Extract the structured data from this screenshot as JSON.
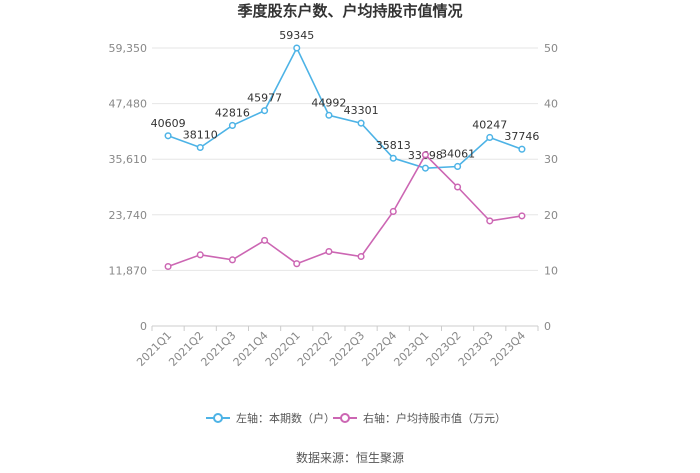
{
  "chart_data": {
    "type": "line",
    "title": "季度股东户数、户均持股市值情况",
    "categories": [
      "2021Q1",
      "2021Q2",
      "2021Q3",
      "2021Q4",
      "2022Q1",
      "2022Q2",
      "2022Q3",
      "2022Q4",
      "2023Q1",
      "2023Q2",
      "2023Q3",
      "2023Q4"
    ],
    "left_axis": {
      "ticks": [
        "0",
        "11,870",
        "23,740",
        "35,610",
        "47,480",
        "59,350"
      ],
      "ylim": [
        0,
        59350
      ]
    },
    "right_axis": {
      "ticks": [
        "0",
        "10",
        "20",
        "30",
        "40",
        "50"
      ],
      "ylim": [
        0,
        50
      ]
    },
    "series": [
      {
        "name": "左轴：本期数（户）",
        "axis": "left",
        "color": "#4db3e6",
        "values": [
          40609,
          38110,
          42816,
          45977,
          59345,
          44992,
          43301,
          35813,
          33698,
          34061,
          40247,
          37746
        ],
        "labels": [
          "40609",
          "38110",
          "42816",
          "45977",
          "59345",
          "44992",
          "43301",
          "35813",
          "33698",
          "34061",
          "40247",
          "37746"
        ]
      },
      {
        "name": "右轴：户均持股市值（万元）",
        "axis": "right",
        "color": "#cc66b3",
        "values": [
          10.7,
          12.8,
          11.9,
          15.4,
          11.2,
          13.4,
          12.5,
          20.6,
          30.8,
          25.0,
          18.9,
          19.8
        ]
      }
    ],
    "grid": true,
    "legend_position": "bottom"
  },
  "source": "数据来源：恒生聚源"
}
